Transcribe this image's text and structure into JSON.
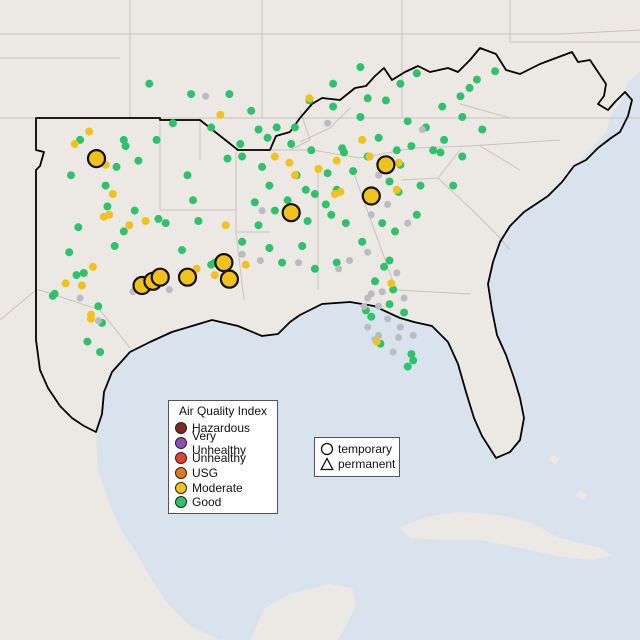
{
  "map": {
    "land_color": "#ece8e3",
    "water_color": "#d9e3ed",
    "border_color": "#c9c3bd",
    "region_outline_color": "#000000"
  },
  "legend_aqi": {
    "title": "Air Quality Index",
    "items": [
      {
        "label": "Hazardous",
        "color": "#7e2a1e"
      },
      {
        "label": "Very Unhealthy",
        "color": "#8f4fb1"
      },
      {
        "label": "Unhealthy",
        "color": "#e04331"
      },
      {
        "label": "USG",
        "color": "#e8771c"
      },
      {
        "label": "Moderate",
        "color": "#f1c21b"
      },
      {
        "label": "Good",
        "color": "#2ec26b"
      }
    ]
  },
  "legend_type": {
    "items": [
      {
        "label": "temporary",
        "symbol": "circle-icon"
      },
      {
        "label": "permanent",
        "symbol": "triangle-icon"
      }
    ]
  },
  "markers": {
    "large_moderate": [
      [
        -97.5,
        35.5
      ],
      [
        -95.0,
        29.4
      ],
      [
        -94.4,
        29.6
      ],
      [
        -94.0,
        29.8
      ],
      [
        -92.5,
        29.8
      ],
      [
        -90.5,
        30.5
      ],
      [
        -90.2,
        29.7
      ],
      [
        -86.8,
        32.9
      ],
      [
        -82.4,
        33.7
      ],
      [
        -81.6,
        35.2
      ]
    ],
    "good": [
      [
        -98.4,
        36.4
      ],
      [
        -96.0,
        36.4
      ],
      [
        -95.9,
        36.1
      ],
      [
        -97.5,
        35.4
      ],
      [
        -96.4,
        35.1
      ],
      [
        -95.2,
        35.4
      ],
      [
        -98.9,
        34.7
      ],
      [
        -97.0,
        34.2
      ],
      [
        -95.4,
        33.0
      ],
      [
        -96.9,
        33.2
      ],
      [
        -98.5,
        32.2
      ],
      [
        -96.0,
        32.0
      ],
      [
        -99.0,
        31.0
      ],
      [
        -96.5,
        31.3
      ],
      [
        -98.2,
        30.0
      ],
      [
        -98.6,
        29.9
      ],
      [
        -99.8,
        29.0
      ],
      [
        -99.9,
        28.9
      ],
      [
        -97.4,
        28.4
      ],
      [
        -97.2,
        27.6
      ],
      [
        -98.0,
        26.7
      ],
      [
        -97.3,
        26.2
      ],
      [
        -94.1,
        32.6
      ],
      [
        -92.2,
        33.5
      ],
      [
        -92.5,
        34.7
      ],
      [
        -90.3,
        35.5
      ],
      [
        -89.6,
        36.2
      ],
      [
        -88.6,
        36.9
      ],
      [
        -89.5,
        35.6
      ],
      [
        -88.4,
        35.1
      ],
      [
        -88.0,
        34.2
      ],
      [
        -87.7,
        33.0
      ],
      [
        -87.0,
        33.5
      ],
      [
        -86.5,
        34.7
      ],
      [
        -85.5,
        33.8
      ],
      [
        -85.9,
        32.5
      ],
      [
        -88.6,
        32.3
      ],
      [
        -89.5,
        31.5
      ],
      [
        -88.0,
        31.2
      ],
      [
        -86.2,
        31.3
      ],
      [
        -84.6,
        32.8
      ],
      [
        -83.8,
        32.4
      ],
      [
        -82.9,
        31.5
      ],
      [
        -81.8,
        32.4
      ],
      [
        -81.1,
        32.0
      ],
      [
        -81.4,
        30.6
      ],
      [
        -81.7,
        30.3
      ],
      [
        -82.2,
        29.6
      ],
      [
        -81.4,
        28.5
      ],
      [
        -80.6,
        28.1
      ],
      [
        -80.2,
        26.1
      ],
      [
        -80.1,
        25.8
      ],
      [
        -80.4,
        25.5
      ],
      [
        -81.9,
        26.6
      ],
      [
        -85.7,
        35.9
      ],
      [
        -86.8,
        36.2
      ],
      [
        -84.0,
        36.0
      ],
      [
        -83.9,
        35.8
      ],
      [
        -82.6,
        35.6
      ],
      [
        -80.8,
        35.2
      ],
      [
        -80.2,
        36.1
      ],
      [
        -79.0,
        35.9
      ],
      [
        -78.6,
        35.8
      ],
      [
        -77.4,
        35.6
      ],
      [
        -77.9,
        34.2
      ],
      [
        -79.9,
        32.8
      ],
      [
        -80.9,
        33.9
      ],
      [
        -79.7,
        34.2
      ],
      [
        -81.0,
        35.9
      ],
      [
        -82.0,
        36.5
      ],
      [
        -80.4,
        37.3
      ],
      [
        -79.4,
        37.0
      ],
      [
        -77.4,
        37.5
      ],
      [
        -76.3,
        36.9
      ],
      [
        -78.5,
        38.0
      ],
      [
        -77.5,
        38.5
      ],
      [
        -84.5,
        38.0
      ],
      [
        -85.8,
        38.3
      ],
      [
        -83.0,
        37.5
      ],
      [
        -82.6,
        38.4
      ],
      [
        -86.6,
        37.0
      ],
      [
        -81.6,
        38.3
      ],
      [
        -80.8,
        39.1
      ],
      [
        -79.9,
        39.6
      ],
      [
        -77.0,
        38.9
      ],
      [
        -76.6,
        39.3
      ],
      [
        -75.6,
        39.7
      ],
      [
        -83.0,
        39.9
      ],
      [
        -84.5,
        39.1
      ],
      [
        -87.6,
        37.0
      ],
      [
        -90.2,
        38.6
      ],
      [
        -92.3,
        38.6
      ],
      [
        -94.6,
        39.1
      ],
      [
        -91.2,
        37.0
      ],
      [
        -93.3,
        37.2
      ],
      [
        -94.2,
        36.4
      ],
      [
        -89.0,
        37.8
      ],
      [
        -88.1,
        36.5
      ],
      [
        -92.8,
        31.1
      ],
      [
        -91.2,
        30.4
      ],
      [
        -91.0,
        30.5
      ],
      [
        -90.8,
        30.6
      ],
      [
        -93.7,
        32.4
      ],
      [
        -91.9,
        32.5
      ],
      [
        -84.3,
        30.5
      ],
      [
        -85.5,
        30.2
      ],
      [
        -87.3,
        30.5
      ],
      [
        -82.4,
        27.9
      ],
      [
        -82.7,
        28.2
      ],
      [
        -81.2,
        29.2
      ],
      [
        -83.4,
        34.9
      ],
      [
        -84.8,
        34.8
      ],
      [
        -84.3,
        34.0
      ],
      [
        -84.9,
        33.3
      ],
      [
        -86.0,
        34.0
      ],
      [
        -88.8,
        33.4
      ],
      [
        -81.4,
        34.4
      ],
      [
        -78.4,
        36.4
      ]
    ],
    "small_moderate": [
      [
        -97.9,
        36.8
      ],
      [
        -98.7,
        36.2
      ],
      [
        -97.0,
        35.2
      ],
      [
        -96.6,
        33.8
      ],
      [
        -96.8,
        32.8
      ],
      [
        -97.1,
        32.7
      ],
      [
        -95.7,
        32.3
      ],
      [
        -97.7,
        30.3
      ],
      [
        -98.3,
        29.4
      ],
      [
        -97.8,
        28.0
      ],
      [
        -99.2,
        29.5
      ],
      [
        -97.8,
        27.8
      ],
      [
        -94.8,
        32.5
      ],
      [
        -90.4,
        32.3
      ],
      [
        -89.3,
        30.4
      ],
      [
        -90.1,
        30.0
      ],
      [
        -91.0,
        29.9
      ],
      [
        -92.0,
        30.2
      ],
      [
        -86.6,
        34.7
      ],
      [
        -85.3,
        35.0
      ],
      [
        -84.3,
        35.4
      ],
      [
        -82.5,
        35.6
      ],
      [
        -84.1,
        33.9
      ],
      [
        -84.4,
        33.8
      ],
      [
        -81.0,
        34.0
      ],
      [
        -80.9,
        35.3
      ],
      [
        -81.3,
        29.5
      ],
      [
        -82.1,
        26.7
      ],
      [
        -87.7,
        35.6
      ],
      [
        -86.9,
        35.3
      ],
      [
        -90.7,
        37.6
      ],
      [
        -85.8,
        38.4
      ],
      [
        -82.9,
        36.4
      ]
    ],
    "gray": [
      [
        -95.5,
        29.1
      ],
      [
        -93.5,
        29.2
      ],
      [
        -89.5,
        30.9
      ],
      [
        -88.5,
        30.6
      ],
      [
        -86.4,
        30.5
      ],
      [
        -84.2,
        30.2
      ],
      [
        -83.6,
        30.6
      ],
      [
        -82.6,
        31.0
      ],
      [
        -81.8,
        29.1
      ],
      [
        -82.8,
        28.4
      ],
      [
        -82.6,
        27.4
      ],
      [
        -82.2,
        26.8
      ],
      [
        -81.2,
        26.2
      ],
      [
        -80.9,
        26.9
      ],
      [
        -80.8,
        27.4
      ],
      [
        -80.6,
        28.8
      ],
      [
        -81.0,
        30.0
      ],
      [
        -82.6,
        28.8
      ],
      [
        -82.0,
        27.0
      ],
      [
        -81.5,
        27.8
      ],
      [
        -97.4,
        27.7
      ],
      [
        -98.4,
        28.8
      ],
      [
        -91.5,
        38.5
      ],
      [
        -84.8,
        37.2
      ],
      [
        -82.0,
        34.7
      ],
      [
        -82.4,
        32.8
      ],
      [
        -81.5,
        33.3
      ],
      [
        -80.4,
        32.4
      ],
      [
        -82.4,
        29.0
      ],
      [
        -82.0,
        28.4
      ],
      [
        -79.6,
        36.9
      ],
      [
        -88.4,
        33.0
      ],
      [
        -80.1,
        27.0
      ]
    ]
  }
}
